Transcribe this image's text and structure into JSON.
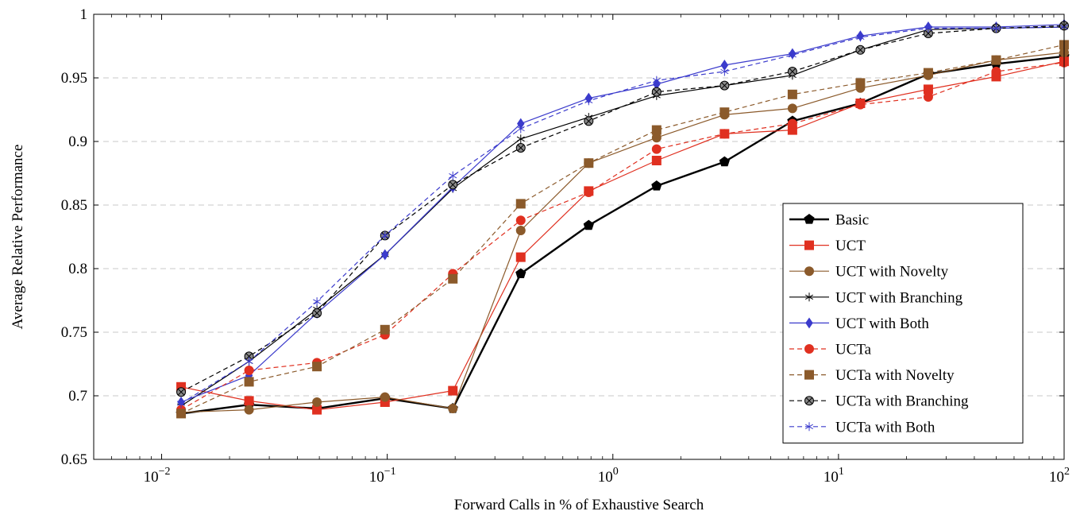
{
  "chart_data": {
    "type": "line",
    "title": "",
    "xlabel": "Forward Calls in % of Exhaustive Search",
    "ylabel": "Average Relative Performance",
    "xscale": "log",
    "xlim": [
      0.005,
      100
    ],
    "ylim": [
      0.65,
      1.0
    ],
    "grid": "y-dashed",
    "legend_position": "bottom-right",
    "x_ticks": [
      {
        "value": 0.01,
        "base": "10",
        "exp": "−2"
      },
      {
        "value": 0.1,
        "base": "10",
        "exp": "−1"
      },
      {
        "value": 1,
        "base": "10",
        "exp": "0"
      },
      {
        "value": 10,
        "base": "10",
        "exp": "1"
      },
      {
        "value": 100,
        "base": "10",
        "exp": "2"
      }
    ],
    "y_ticks": [
      {
        "value": 0.65,
        "label": "0.65"
      },
      {
        "value": 0.7,
        "label": "0.7"
      },
      {
        "value": 0.75,
        "label": "0.75"
      },
      {
        "value": 0.8,
        "label": "0.8"
      },
      {
        "value": 0.85,
        "label": "0.85"
      },
      {
        "value": 0.9,
        "label": "0.9"
      },
      {
        "value": 0.95,
        "label": "0.95"
      },
      {
        "value": 1.0,
        "label": "1"
      }
    ],
    "x": [
      0.0122,
      0.0244,
      0.0488,
      0.0977,
      0.1953,
      0.3906,
      0.7813,
      1.5625,
      3.125,
      6.25,
      12.5,
      25,
      50,
      100
    ],
    "series": [
      {
        "name": "Basic",
        "color": "#000000",
        "marker": "pentagon",
        "dash": "solid",
        "width": 2.4,
        "values": [
          0.686,
          0.693,
          0.69,
          0.698,
          0.69,
          0.796,
          0.834,
          0.865,
          0.884,
          0.916,
          0.93,
          0.953,
          0.961,
          0.967
        ]
      },
      {
        "name": "UCT",
        "color": "#e03020",
        "marker": "square",
        "dash": "solid",
        "width": 1.2,
        "values": [
          0.707,
          0.696,
          0.689,
          0.695,
          0.704,
          0.809,
          0.861,
          0.885,
          0.906,
          0.909,
          0.93,
          0.941,
          0.951,
          0.963
        ]
      },
      {
        "name": "UCT with Novelty",
        "color": "#8b5a2b",
        "marker": "circle",
        "dash": "solid",
        "width": 1.2,
        "values": [
          0.687,
          0.689,
          0.695,
          0.699,
          0.69,
          0.83,
          0.883,
          0.903,
          0.921,
          0.926,
          0.942,
          0.952,
          0.964,
          0.97
        ]
      },
      {
        "name": "UCT with Branching",
        "color": "#000000",
        "marker": "star",
        "dash": "solid",
        "width": 1.2,
        "values": [
          0.692,
          0.727,
          0.768,
          0.811,
          0.863,
          0.902,
          0.919,
          0.936,
          0.944,
          0.952,
          0.972,
          0.988,
          0.989,
          0.99
        ]
      },
      {
        "name": "UCT with Both",
        "color": "#3b3bcc",
        "marker": "diamond",
        "dash": "solid",
        "width": 1.2,
        "values": [
          0.695,
          0.716,
          0.765,
          0.811,
          0.864,
          0.914,
          0.934,
          0.945,
          0.96,
          0.969,
          0.983,
          0.99,
          0.99,
          0.992
        ]
      },
      {
        "name": "UCTa",
        "color": "#e03020",
        "marker": "circle",
        "dash": "dashed",
        "width": 1.2,
        "values": [
          0.689,
          0.72,
          0.726,
          0.748,
          0.796,
          0.838,
          0.86,
          0.894,
          0.906,
          0.914,
          0.929,
          0.935,
          0.955,
          0.962
        ]
      },
      {
        "name": "UCTa with Novelty",
        "color": "#8b5a2b",
        "marker": "square",
        "dash": "dashed",
        "width": 1.2,
        "values": [
          0.686,
          0.711,
          0.723,
          0.752,
          0.792,
          0.851,
          0.883,
          0.909,
          0.923,
          0.937,
          0.946,
          0.954,
          0.964,
          0.976
        ]
      },
      {
        "name": "UCTa with Branching",
        "color": "#000000",
        "marker": "circle-x",
        "dash": "dashed",
        "width": 1.2,
        "values": [
          0.703,
          0.731,
          0.765,
          0.826,
          0.866,
          0.895,
          0.916,
          0.939,
          0.944,
          0.955,
          0.972,
          0.985,
          0.989,
          0.991
        ]
      },
      {
        "name": "UCTa with Both",
        "color": "#3b3bcc",
        "marker": "star",
        "dash": "dashed",
        "width": 1.2,
        "values": [
          0.694,
          0.727,
          0.774,
          0.826,
          0.873,
          0.91,
          0.932,
          0.948,
          0.955,
          0.968,
          0.982,
          0.989,
          0.989,
          0.99
        ]
      }
    ]
  }
}
